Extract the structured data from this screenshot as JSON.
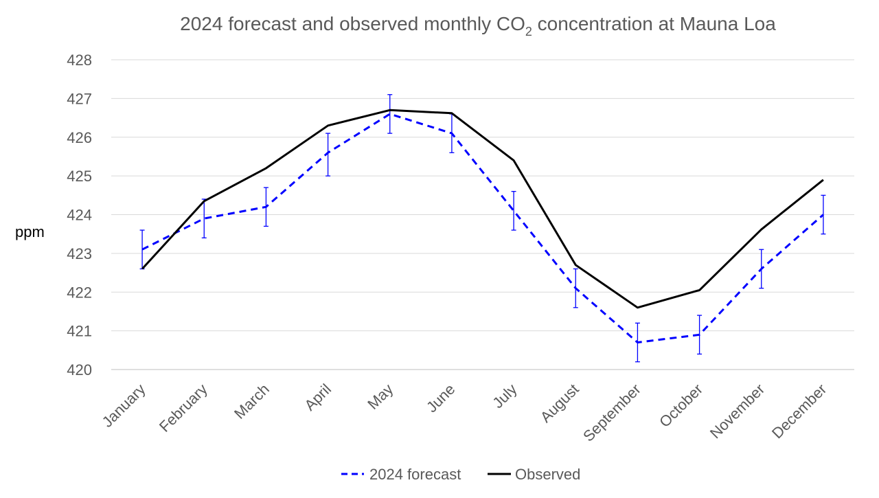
{
  "chart_data": {
    "type": "line",
    "title": {
      "main": "2024 forecast and observed monthly CO",
      "subscript": "2",
      "suffix": " concentration at Mauna Loa"
    },
    "xlabel": "",
    "ylabel": "ppm",
    "ylim": [
      420,
      428
    ],
    "yticks": [
      420,
      421,
      422,
      423,
      424,
      425,
      426,
      427,
      428
    ],
    "grid": true,
    "legend_position": "bottom",
    "categories": [
      "January",
      "February",
      "March",
      "April",
      "May",
      "June",
      "July",
      "August",
      "September",
      "October",
      "November",
      "December"
    ],
    "series": [
      {
        "name": "2024 forecast",
        "style": "dashed",
        "color": "#0000FF",
        "values": [
          423.1,
          423.9,
          424.2,
          425.6,
          426.6,
          426.1,
          424.1,
          422.1,
          420.7,
          420.9,
          422.6,
          424.0
        ],
        "error_low": [
          422.6,
          423.4,
          423.7,
          425.0,
          426.1,
          425.6,
          423.6,
          421.6,
          420.2,
          420.4,
          422.1,
          423.5
        ],
        "error_high": [
          423.6,
          424.4,
          424.7,
          426.1,
          427.1,
          426.6,
          424.6,
          422.6,
          421.2,
          421.4,
          423.1,
          424.5
        ]
      },
      {
        "name": "Observed",
        "style": "solid",
        "color": "#000000",
        "values": [
          422.6,
          424.35,
          425.2,
          426.3,
          426.7,
          426.62,
          425.4,
          422.7,
          421.6,
          422.05,
          423.62,
          424.9
        ]
      }
    ]
  }
}
